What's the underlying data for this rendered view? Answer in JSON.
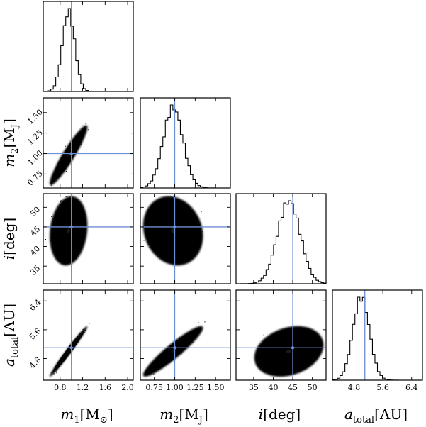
{
  "chart_data": {
    "type": "corner",
    "title": "",
    "parameters": [
      {
        "key": "m1",
        "label": "m",
        "sub": "1",
        "unit_open": "[M",
        "unit_sub": "⊙",
        "unit_close": "]",
        "range": [
          0.5,
          2.1
        ],
        "ticks": [
          0.8,
          1.2,
          1.6,
          2.0
        ],
        "tick_labels": [
          "0.8",
          "1.2",
          "1.6",
          "2.0"
        ],
        "truth": 1.0,
        "mean": 0.95,
        "sd": 0.11,
        "hist_peak": 1.07,
        "hist_x_ticks": [],
        "hist_x_tick_labels": []
      },
      {
        "key": "m2",
        "label": "m",
        "sub": "2",
        "unit_open": "[M",
        "unit_sub": "J",
        "unit_close": "]",
        "range": [
          0.58,
          1.68
        ],
        "ticks": [
          0.75,
          1.0,
          1.25,
          1.5
        ],
        "tick_labels": [
          "0.75",
          "1.00",
          "1.25",
          "1.50"
        ],
        "truth": 1.0,
        "mean": 0.98,
        "sd": 0.12
      },
      {
        "key": "i",
        "label": "i",
        "sub": "",
        "unit_open": "[deg",
        "unit_sub": "",
        "unit_close": "]",
        "range": [
          30.5,
          53.5
        ],
        "ticks": [
          35,
          40,
          45,
          50
        ],
        "tick_labels": [
          "35",
          "40",
          "45",
          "50"
        ],
        "truth": 45.0,
        "mean": 44.0,
        "sd": 2.9
      },
      {
        "key": "a",
        "label": "a",
        "sub": "total",
        "unit_open": "[AU",
        "unit_sub": "",
        "unit_close": "]",
        "range": [
          4.2,
          6.7
        ],
        "ticks": [
          4.8,
          5.6,
          6.4
        ],
        "tick_labels": [
          "4.8",
          "5.6",
          "6.4"
        ],
        "truth": 5.1,
        "mean": 5.0,
        "sd": 0.23
      }
    ],
    "correlations": {
      "m1|m2": 0.93,
      "m1|i": 0.15,
      "m2|i": -0.15,
      "m1|a": 0.985,
      "m2|a": 0.93,
      "i|a": 0.25
    },
    "histograms": "1D marginal posterior step histograms on the diagonal",
    "scatter": "2D posterior samples with 1σ, 2σ, 3σ contours below the diagonal",
    "truth_lines": "blue reference lines at the true values"
  },
  "colors": {
    "truth": "#6d8fd6",
    "samples": "#000000",
    "level1": "#3a3a3a",
    "level2": "#b8b8b8",
    "level3": "#ffffff"
  }
}
